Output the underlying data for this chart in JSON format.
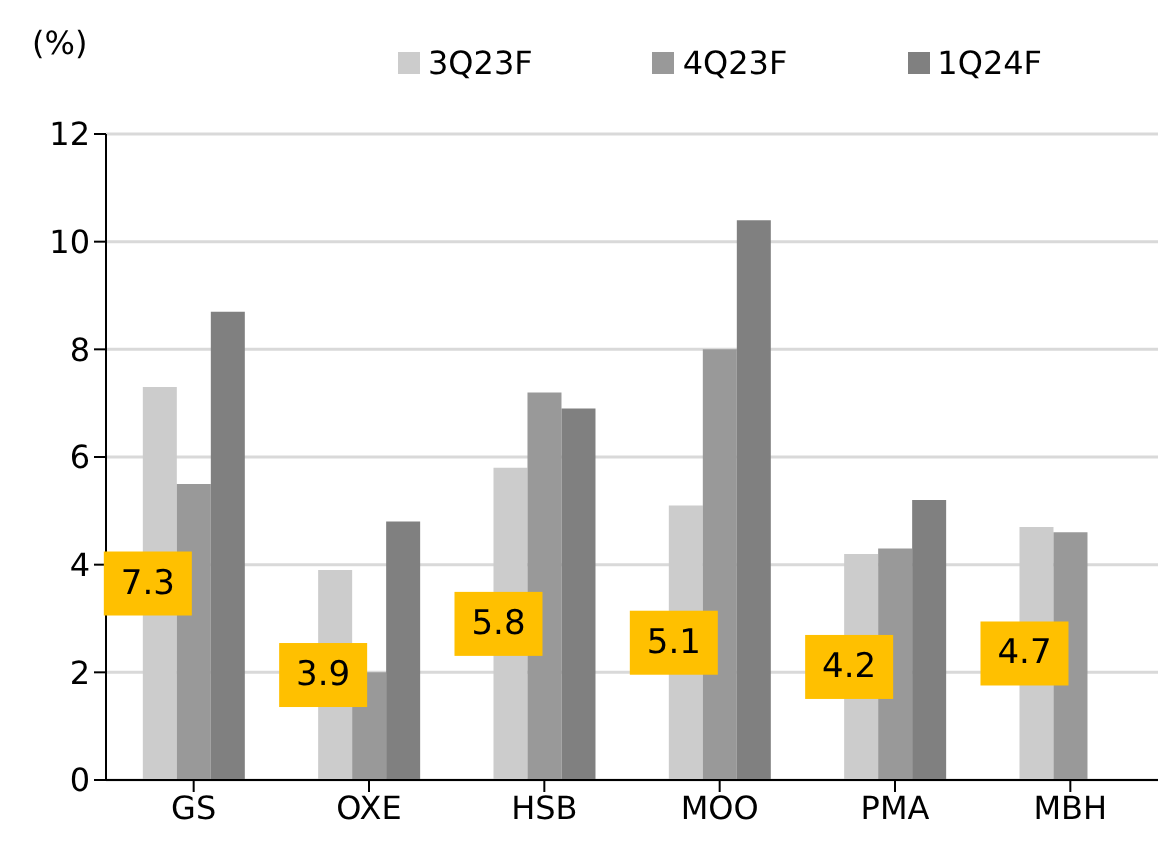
{
  "chart_data": {
    "type": "bar",
    "ylabel": "(%)",
    "categories": [
      "GS",
      "OXE",
      "HSB",
      "MOO",
      "PMA",
      "MBH"
    ],
    "series": [
      {
        "name": "3Q23F",
        "color": "#cccccc",
        "values": [
          7.3,
          3.9,
          5.8,
          5.1,
          4.2,
          4.7
        ],
        "value_labels": [
          "7.3",
          "3.9",
          "5.8",
          "5.1",
          "4.2",
          "4.7"
        ]
      },
      {
        "name": "4Q23F",
        "color": "#999999",
        "values": [
          5.5,
          2.0,
          7.2,
          8.0,
          4.3,
          4.6
        ]
      },
      {
        "name": "1Q24F",
        "color": "#808080",
        "values": [
          8.7,
          4.8,
          6.9,
          10.4,
          5.2,
          null
        ]
      }
    ],
    "ylim": [
      0,
      12
    ],
    "yticks": [
      0,
      2,
      4,
      6,
      8,
      10,
      12
    ],
    "grid": "y",
    "legend": "top"
  }
}
